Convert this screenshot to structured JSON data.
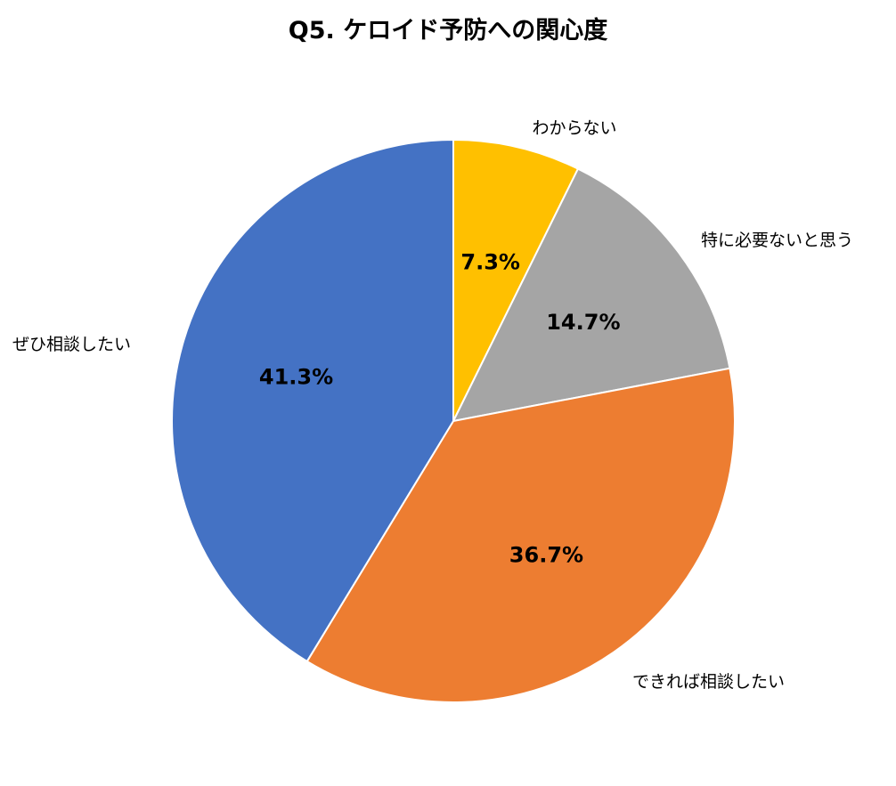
{
  "chart_data": {
    "type": "pie",
    "title": "Q5. ケロイド予防への関心度",
    "start": "12 o'clock",
    "direction": "clockwise",
    "slices": [
      {
        "category": "わからない",
        "value": 7.3,
        "label": "7.3%",
        "color": "#ffc000"
      },
      {
        "category": "特に必要ないと思う",
        "value": 14.7,
        "label": "14.7%",
        "color": "#a5a5a5"
      },
      {
        "category": "できれば相談したい",
        "value": 36.7,
        "label": "36.7%",
        "color": "#ed7d31"
      },
      {
        "category": "ぜひ相談したい",
        "value": 41.3,
        "label": "41.3%",
        "color": "#4472c4"
      }
    ]
  }
}
